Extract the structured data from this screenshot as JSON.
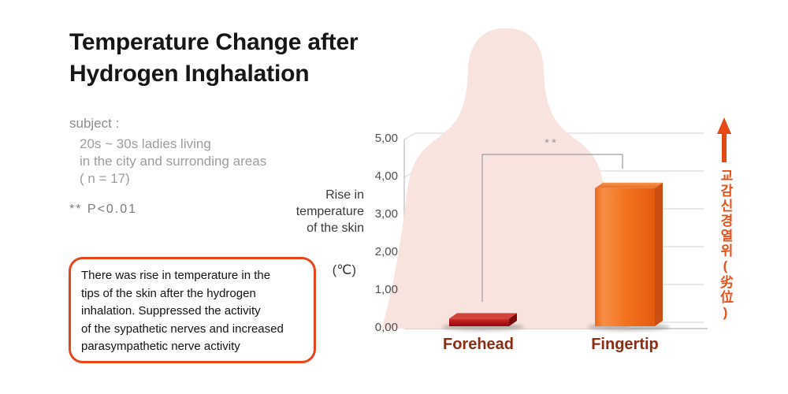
{
  "title": {
    "lines": [
      "Temperature Change after",
      "Hydrogen Inghalation"
    ]
  },
  "subject": {
    "label": "subject :",
    "lines": [
      "20s ~ 30s ladies living",
      "in the city and surronding areas",
      "( n = 17)"
    ]
  },
  "p_value": "** P<0.01",
  "note_box": {
    "lines": [
      "There was rise in temperature in the",
      "tips of the skin after the hydrogen",
      "inhalation. Suppressed the activity",
      "of the sypathetic nerves and increased",
      "parasympathetic nerve activity"
    ]
  },
  "chart_data": {
    "type": "bar",
    "categories": [
      "Forehead",
      "Fingertip"
    ],
    "values": [
      0.2,
      3.65
    ],
    "title": "",
    "ylabel_lines": [
      "Rise in",
      "temperature",
      "of the skin"
    ],
    "unit_label": "(℃)",
    "yticks": [
      "0,00",
      "1,00",
      "2,00",
      "3,00",
      "4,00",
      "5,00"
    ],
    "ylim": [
      0,
      5
    ],
    "grid": true,
    "legend": "none",
    "significance_marker": "**",
    "right_annotation": {
      "text": "교감신경열위(劣位)",
      "arrow": "up"
    }
  },
  "colors": {
    "accent_orange": "#e8451c",
    "forehead_bar": "#b3141a",
    "fingertip_bar": "#f26d1e",
    "silhouette_pink": "#f8e3de",
    "category_label": "#8e2c12",
    "annotation_orange": "#e8511b"
  }
}
